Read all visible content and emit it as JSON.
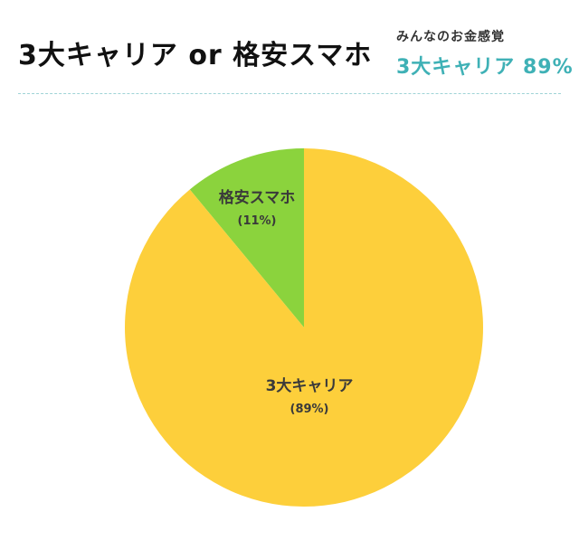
{
  "header": {
    "title": "3大キャリア or 格安スマホ",
    "summary_caption": "みんなのお金感覚",
    "summary_value": "3大キャリア 89%"
  },
  "colors": {
    "carrier": "#fdcf3b",
    "budget": "#8bd33d",
    "accent": "#3fb1b6"
  },
  "chart_data": {
    "type": "pie",
    "categories": [
      "格安スマホ",
      "3大キャリア"
    ],
    "values": [
      11,
      89
    ],
    "labels": [
      "格安スマホ",
      "3大キャリア"
    ],
    "value_labels": [
      "(11%)",
      "(89%)"
    ],
    "title": "3大キャリア or 格安スマホ"
  }
}
